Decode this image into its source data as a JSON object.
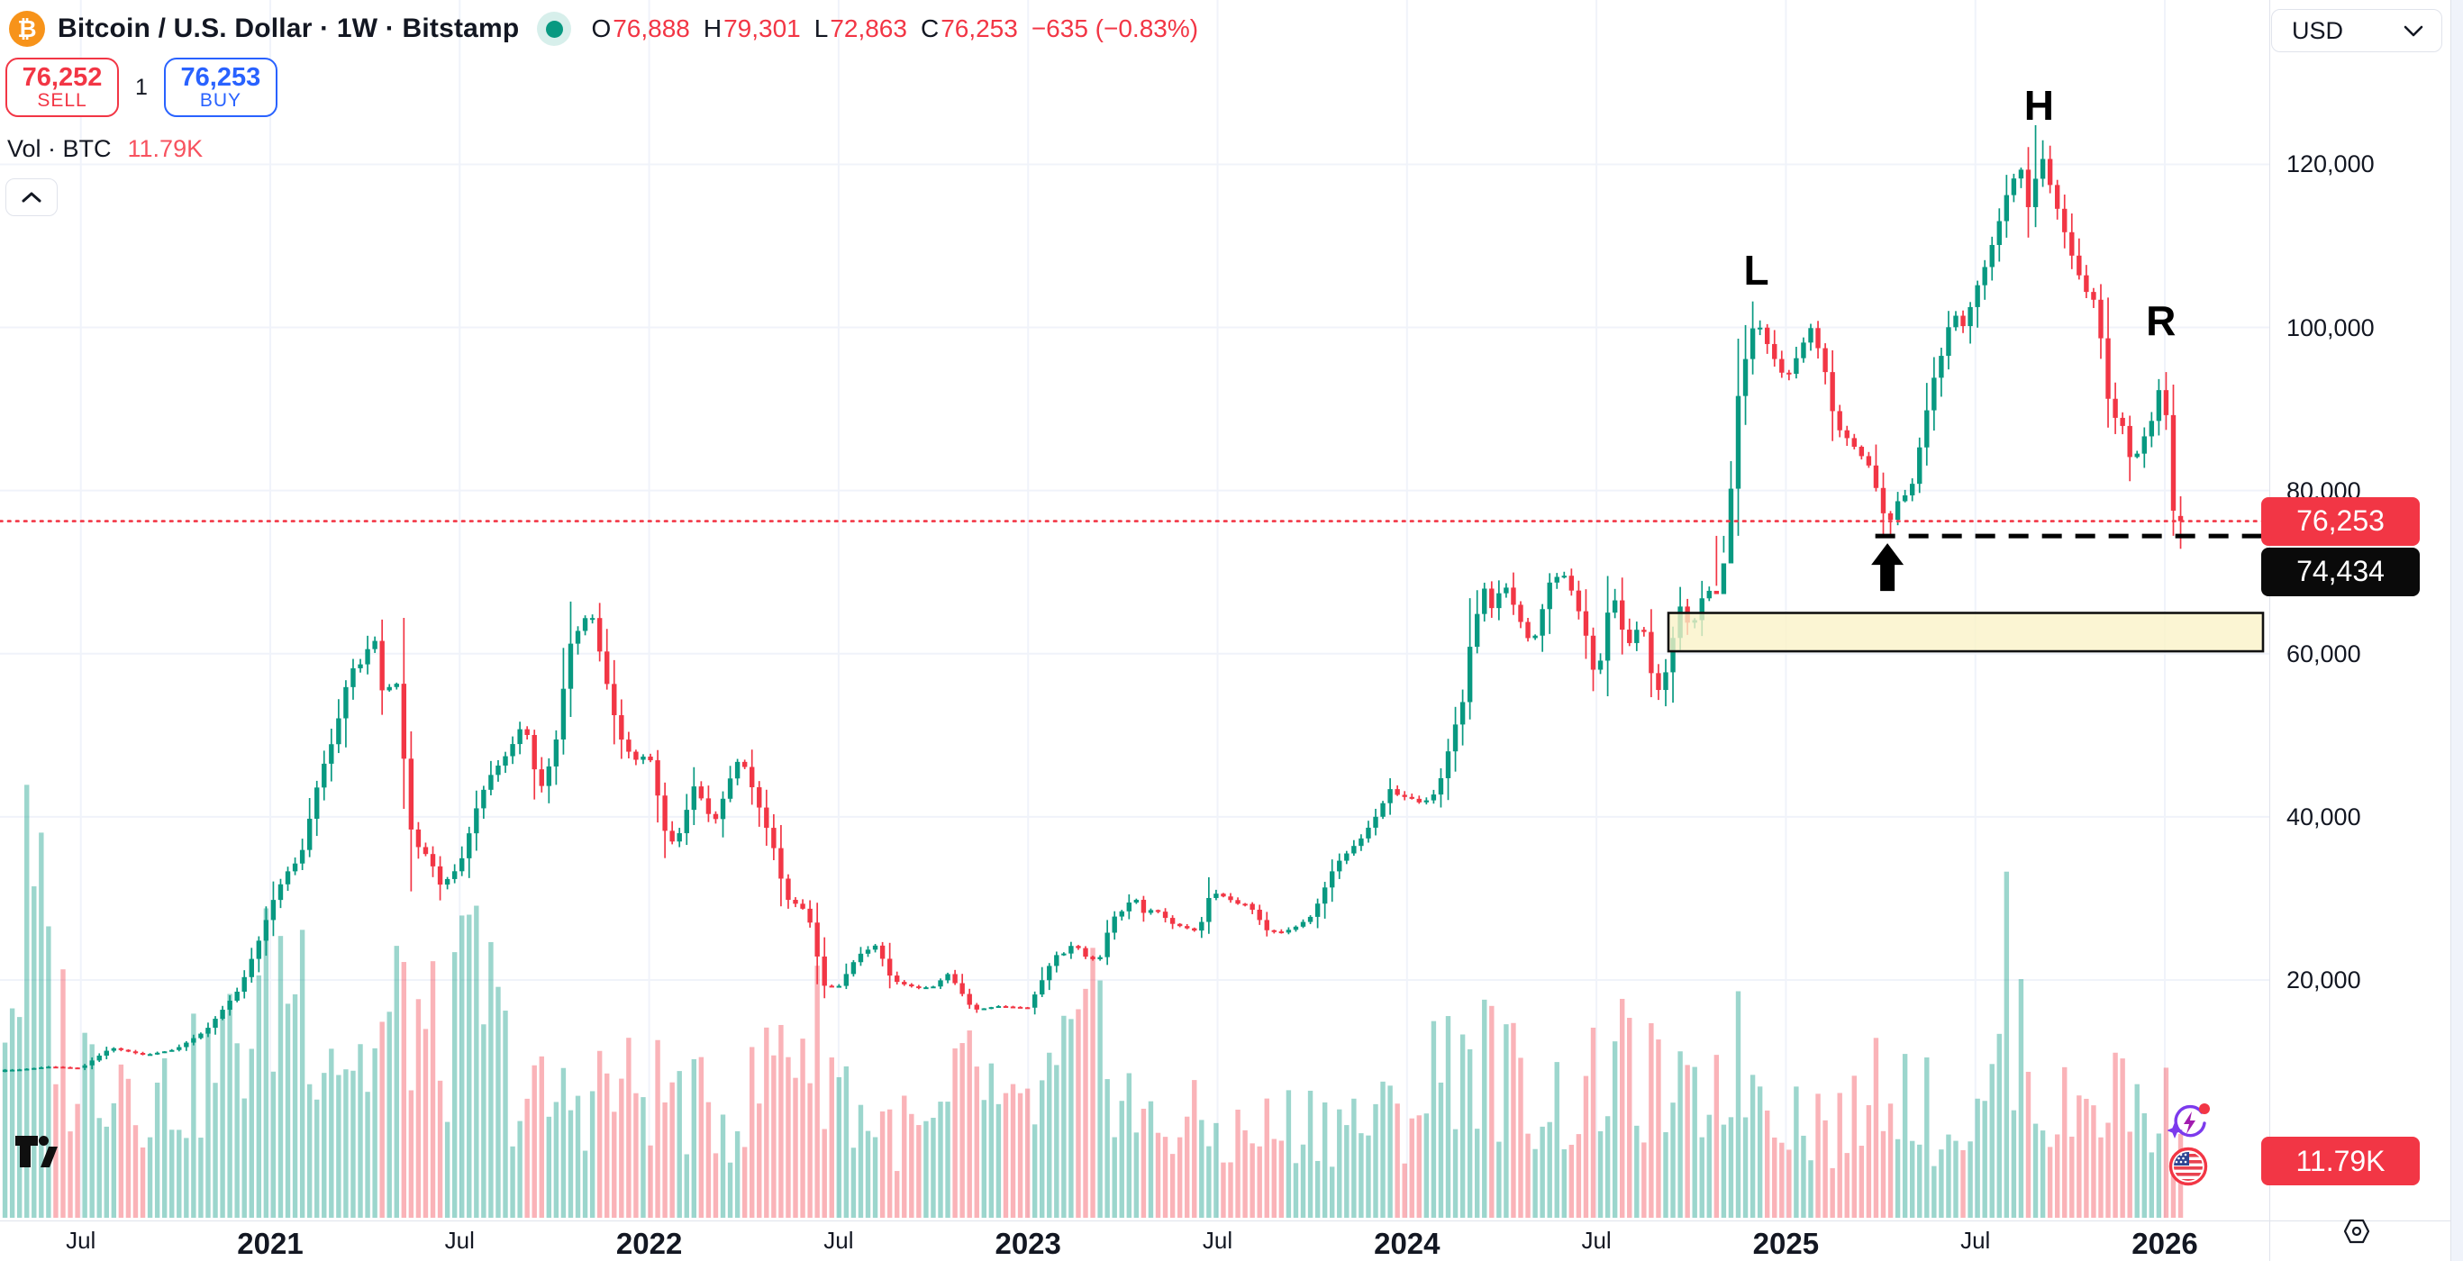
{
  "header": {
    "title_full": "Bitcoin / U.S. Dollar · 1W · Bitstamp",
    "symbol": "Bitcoin / U.S. Dollar",
    "interval": "1W",
    "exchange": "Bitstamp",
    "ohlc": [
      {
        "k": "O",
        "v": "76,888"
      },
      {
        "k": "H",
        "v": "79,301"
      },
      {
        "k": "L",
        "v": "72,863"
      },
      {
        "k": "C",
        "v": "76,253"
      }
    ],
    "change": "−635 (−0.83%)",
    "market_status": "open"
  },
  "trade_panel": {
    "sell": {
      "price": "76,252",
      "label": "SELL"
    },
    "spread": "1",
    "buy": {
      "price": "76,253",
      "label": "BUY"
    }
  },
  "volume_row": {
    "label": "Vol · BTC",
    "value": "11.79K"
  },
  "currency_selector": {
    "value": "USD"
  },
  "price_axis": {
    "ticks": [
      {
        "text": "120,000",
        "value": 120
      },
      {
        "text": "100,000",
        "value": 100
      },
      {
        "text": "80,000",
        "value": 80
      },
      {
        "text": "60,000",
        "value": 60
      },
      {
        "text": "40,000",
        "value": 40
      },
      {
        "text": "20,000",
        "value": 20
      }
    ],
    "last_price_badge": "76,253",
    "neckline_badge": "74,434",
    "volume_badge": "11.79K"
  },
  "time_axis": {
    "ticks": [
      {
        "text": "Jul",
        "t": 2020.5,
        "bold": false
      },
      {
        "text": "2021",
        "t": 2021.0,
        "bold": true
      },
      {
        "text": "Jul",
        "t": 2021.5,
        "bold": false
      },
      {
        "text": "2022",
        "t": 2022.0,
        "bold": true
      },
      {
        "text": "Jul",
        "t": 2022.5,
        "bold": false
      },
      {
        "text": "2023",
        "t": 2023.0,
        "bold": true
      },
      {
        "text": "Jul",
        "t": 2023.5,
        "bold": false
      },
      {
        "text": "2024",
        "t": 2024.0,
        "bold": true
      },
      {
        "text": "Jul",
        "t": 2024.5,
        "bold": false
      },
      {
        "text": "2025",
        "t": 2025.0,
        "bold": true
      },
      {
        "text": "Jul",
        "t": 2025.5,
        "bold": false
      },
      {
        "text": "2026",
        "t": 2026.0,
        "bold": true
      }
    ]
  },
  "annotations": {
    "left_shoulder": {
      "text": "L",
      "t": 2024.922,
      "price_level": 107.0
    },
    "head": {
      "text": "H",
      "t": 2025.668,
      "price_level": 127.2
    },
    "right_shoulder": {
      "text": "R",
      "t": 2025.99,
      "price_level": 100.8
    },
    "neckline": {
      "price": 74.434,
      "from_t": 2025.255
    },
    "last_price_line": {
      "price": 76.253
    },
    "support_zone": {
      "price_from": 60.3,
      "price_to": 65.0,
      "from_t": 2024.69
    },
    "breakdown_arrow": {
      "t": 2025.268,
      "direction": "up"
    }
  },
  "colors": {
    "up": "#089981",
    "down": "#F23645",
    "vol_up": "rgba(8,153,129,0.40)",
    "vol_down": "rgba(242,54,69,0.38)",
    "grid": "#F0F3FA",
    "axis_text": "#131722",
    "last_price_line": "#F23645",
    "neckline": "#000000",
    "zone_fill": "rgba(250,242,199,0.78)",
    "zone_border": "#111111",
    "sell": "#F23645",
    "buy": "#2962FF",
    "accent_orange": "#F7931A"
  },
  "chart_data": {
    "type": "candlestick",
    "title": "Bitcoin / U.S. Dollar",
    "interval": "1W",
    "source": "Bitstamp",
    "x_range": [
      2020.3,
      2026.1
    ],
    "y_axis": {
      "ticks_usd": [
        20000,
        40000,
        60000,
        80000,
        100000,
        120000
      ],
      "scale": "linear"
    },
    "legend_last_candle": {
      "open": 76888,
      "high": 79301,
      "low": 72863,
      "close": 76253,
      "change": -635,
      "change_pct": -0.83
    },
    "current_price": 76253,
    "neckline_price": 74434,
    "support_zone_usd": [
      60300,
      65000
    ],
    "volume_btc_current": "11.79K",
    "note": "weekly closes in thousands USD, sampled as [decimal_year, close]; candles are interpolated weekly between these anchor points",
    "price_path": [
      [
        2020.33,
        9.0
      ],
      [
        2020.42,
        9.4
      ],
      [
        2020.5,
        9.2
      ],
      [
        2020.58,
        11.7
      ],
      [
        2020.67,
        10.8
      ],
      [
        2020.75,
        11.5
      ],
      [
        2020.83,
        13.8
      ],
      [
        2020.92,
        19.0
      ],
      [
        2020.98,
        26.0
      ],
      [
        2021.0,
        29.0
      ],
      [
        2021.04,
        33.0
      ],
      [
        2021.08,
        35.0
      ],
      [
        2021.13,
        45.0
      ],
      [
        2021.17,
        50.0
      ],
      [
        2021.21,
        58.0
      ],
      [
        2021.25,
        59.0
      ],
      [
        2021.27,
        63.5
      ],
      [
        2021.3,
        54.0
      ],
      [
        2021.33,
        58.0
      ],
      [
        2021.355,
        46.0
      ],
      [
        2021.375,
        37.0
      ],
      [
        2021.42,
        35.0
      ],
      [
        2021.45,
        31.5
      ],
      [
        2021.5,
        34.0
      ],
      [
        2021.55,
        42.0
      ],
      [
        2021.58,
        45.0
      ],
      [
        2021.63,
        48.0
      ],
      [
        2021.67,
        51.8
      ],
      [
        2021.71,
        43.0
      ],
      [
        2021.75,
        48.0
      ],
      [
        2021.79,
        61.0
      ],
      [
        2021.845,
        65.5
      ],
      [
        2021.88,
        58.0
      ],
      [
        2021.92,
        50.0
      ],
      [
        2021.96,
        46.9
      ],
      [
        2022.0,
        47.7
      ],
      [
        2022.05,
        36.4
      ],
      [
        2022.08,
        38.0
      ],
      [
        2022.12,
        44.0
      ],
      [
        2022.17,
        39.0
      ],
      [
        2022.23,
        46.8
      ],
      [
        2022.25,
        46.4
      ],
      [
        2022.31,
        38.6
      ],
      [
        2022.33,
        36.0
      ],
      [
        2022.36,
        30.0
      ],
      [
        2022.4,
        29.0
      ],
      [
        2022.42,
        28.0
      ],
      [
        2022.46,
        19.3
      ],
      [
        2022.5,
        19.2
      ],
      [
        2022.55,
        23.0
      ],
      [
        2022.6,
        24.3
      ],
      [
        2022.64,
        20.0
      ],
      [
        2022.67,
        19.5
      ],
      [
        2022.71,
        19.0
      ],
      [
        2022.75,
        19.2
      ],
      [
        2022.79,
        20.8
      ],
      [
        2022.855,
        16.3
      ],
      [
        2022.92,
        16.8
      ],
      [
        2023.0,
        16.6
      ],
      [
        2023.07,
        23.0
      ],
      [
        2023.1,
        23.3
      ],
      [
        2023.12,
        24.6
      ],
      [
        2023.16,
        22.4
      ],
      [
        2023.19,
        22.8
      ],
      [
        2023.22,
        27.5
      ],
      [
        2023.25,
        28.5
      ],
      [
        2023.28,
        30.3
      ],
      [
        2023.31,
        27.8
      ],
      [
        2023.33,
        28.9
      ],
      [
        2023.38,
        26.9
      ],
      [
        2023.45,
        25.9
      ],
      [
        2023.48,
        30.5
      ],
      [
        2023.5,
        30.6
      ],
      [
        2023.56,
        29.2
      ],
      [
        2023.58,
        29.4
      ],
      [
        2023.63,
        26.1
      ],
      [
        2023.67,
        25.8
      ],
      [
        2023.71,
        26.6
      ],
      [
        2023.75,
        27.9
      ],
      [
        2023.81,
        34.1
      ],
      [
        2023.83,
        35.0
      ],
      [
        2023.88,
        37.4
      ],
      [
        2023.92,
        40.2
      ],
      [
        2023.96,
        43.8
      ],
      [
        2023.98,
        42.3
      ],
      [
        2024.0,
        42.5
      ],
      [
        2024.04,
        41.6
      ],
      [
        2024.08,
        43.1
      ],
      [
        2024.13,
        51.7
      ],
      [
        2024.15,
        54.5
      ],
      [
        2024.17,
        62.4
      ],
      [
        2024.21,
        68.9
      ],
      [
        2024.23,
        64.0
      ],
      [
        2024.25,
        69.4
      ],
      [
        2024.3,
        63.9
      ],
      [
        2024.33,
        60.8
      ],
      [
        2024.38,
        69.3
      ],
      [
        2024.42,
        69.6
      ],
      [
        2024.46,
        64.3
      ],
      [
        2024.48,
        60.9
      ],
      [
        2024.5,
        55.9
      ],
      [
        2024.54,
        68.2
      ],
      [
        2024.58,
        60.7
      ],
      [
        2024.62,
        64.1
      ],
      [
        2024.645,
        57.5
      ],
      [
        2024.67,
        54.9
      ],
      [
        2024.72,
        65.9
      ],
      [
        2024.75,
        62.8
      ],
      [
        2024.79,
        68.4
      ],
      [
        2024.81,
        66.6
      ],
      [
        2024.83,
        68.7
      ],
      [
        2024.85,
        76.7
      ],
      [
        2024.87,
        90.6
      ],
      [
        2024.9,
        97.7
      ],
      [
        2024.92,
        101.2
      ],
      [
        2024.96,
        97.0
      ],
      [
        2025.0,
        93.5
      ],
      [
        2025.065,
        100.0
      ],
      [
        2025.1,
        95.5
      ],
      [
        2025.13,
        88.0
      ],
      [
        2025.17,
        86.0
      ],
      [
        2025.22,
        83.0
      ],
      [
        2025.25,
        78.5
      ],
      [
        2025.268,
        75.2
      ],
      [
        2025.29,
        78.5
      ],
      [
        2025.33,
        80.0
      ],
      [
        2025.36,
        87.0
      ],
      [
        2025.385,
        93.0
      ],
      [
        2025.41,
        96.5
      ],
      [
        2025.44,
        102.0
      ],
      [
        2025.47,
        100.0
      ],
      [
        2025.5,
        104.5
      ],
      [
        2025.53,
        108.0
      ],
      [
        2025.56,
        112.5
      ],
      [
        2025.59,
        117.5
      ],
      [
        2025.62,
        119.5
      ],
      [
        2025.645,
        113.5
      ],
      [
        2025.67,
        122.0
      ],
      [
        2025.7,
        117.0
      ],
      [
        2025.73,
        112.5
      ],
      [
        2025.76,
        108.0
      ],
      [
        2025.79,
        104.5
      ],
      [
        2025.82,
        103.0
      ],
      [
        2025.86,
        87.5
      ],
      [
        2025.88,
        90.5
      ],
      [
        2025.9,
        84.5
      ],
      [
        2025.92,
        83.5
      ],
      [
        2025.94,
        86.5
      ],
      [
        2025.96,
        87.0
      ],
      [
        2025.98,
        93.0
      ],
      [
        2026.005,
        89.0
      ],
      [
        2026.024,
        76.6
      ],
      [
        2026.042,
        76.253
      ]
    ],
    "volume_relative_path": [
      [
        2020.33,
        0.72
      ],
      [
        2020.36,
        1.0
      ],
      [
        2020.4,
        0.85
      ],
      [
        2020.48,
        0.45
      ],
      [
        2020.58,
        0.52
      ],
      [
        2020.7,
        0.38
      ],
      [
        2020.83,
        0.45
      ],
      [
        2020.95,
        0.6
      ],
      [
        2021.02,
        0.75
      ],
      [
        2021.07,
        0.82
      ],
      [
        2021.15,
        0.6
      ],
      [
        2021.25,
        0.48
      ],
      [
        2021.36,
        0.68
      ],
      [
        2021.45,
        0.5
      ],
      [
        2021.55,
        0.78
      ],
      [
        2021.65,
        0.38
      ],
      [
        2021.75,
        0.35
      ],
      [
        2021.85,
        0.42
      ],
      [
        2021.95,
        0.4
      ],
      [
        2022.05,
        0.4
      ],
      [
        2022.15,
        0.33
      ],
      [
        2022.25,
        0.33
      ],
      [
        2022.36,
        0.6
      ],
      [
        2022.46,
        0.55
      ],
      [
        2022.55,
        0.33
      ],
      [
        2022.65,
        0.28
      ],
      [
        2022.75,
        0.25
      ],
      [
        2022.86,
        0.48
      ],
      [
        2022.95,
        0.28
      ],
      [
        2023.07,
        0.42
      ],
      [
        2023.19,
        0.6
      ],
      [
        2023.3,
        0.28
      ],
      [
        2023.42,
        0.3
      ],
      [
        2023.53,
        0.25
      ],
      [
        2023.65,
        0.28
      ],
      [
        2023.77,
        0.32
      ],
      [
        2023.88,
        0.3
      ],
      [
        2024.0,
        0.32
      ],
      [
        2024.13,
        0.55
      ],
      [
        2024.21,
        0.5
      ],
      [
        2024.33,
        0.38
      ],
      [
        2024.46,
        0.35
      ],
      [
        2024.54,
        0.48
      ],
      [
        2024.645,
        0.42
      ],
      [
        2024.75,
        0.33
      ],
      [
        2024.85,
        0.52
      ],
      [
        2024.92,
        0.45
      ],
      [
        2025.05,
        0.32
      ],
      [
        2025.17,
        0.28
      ],
      [
        2025.268,
        0.5
      ],
      [
        2025.4,
        0.3
      ],
      [
        2025.53,
        0.3
      ],
      [
        2025.57,
        0.78
      ],
      [
        2025.7,
        0.3
      ],
      [
        2025.86,
        0.42
      ],
      [
        2025.98,
        0.3
      ],
      [
        2026.042,
        0.38
      ]
    ]
  }
}
